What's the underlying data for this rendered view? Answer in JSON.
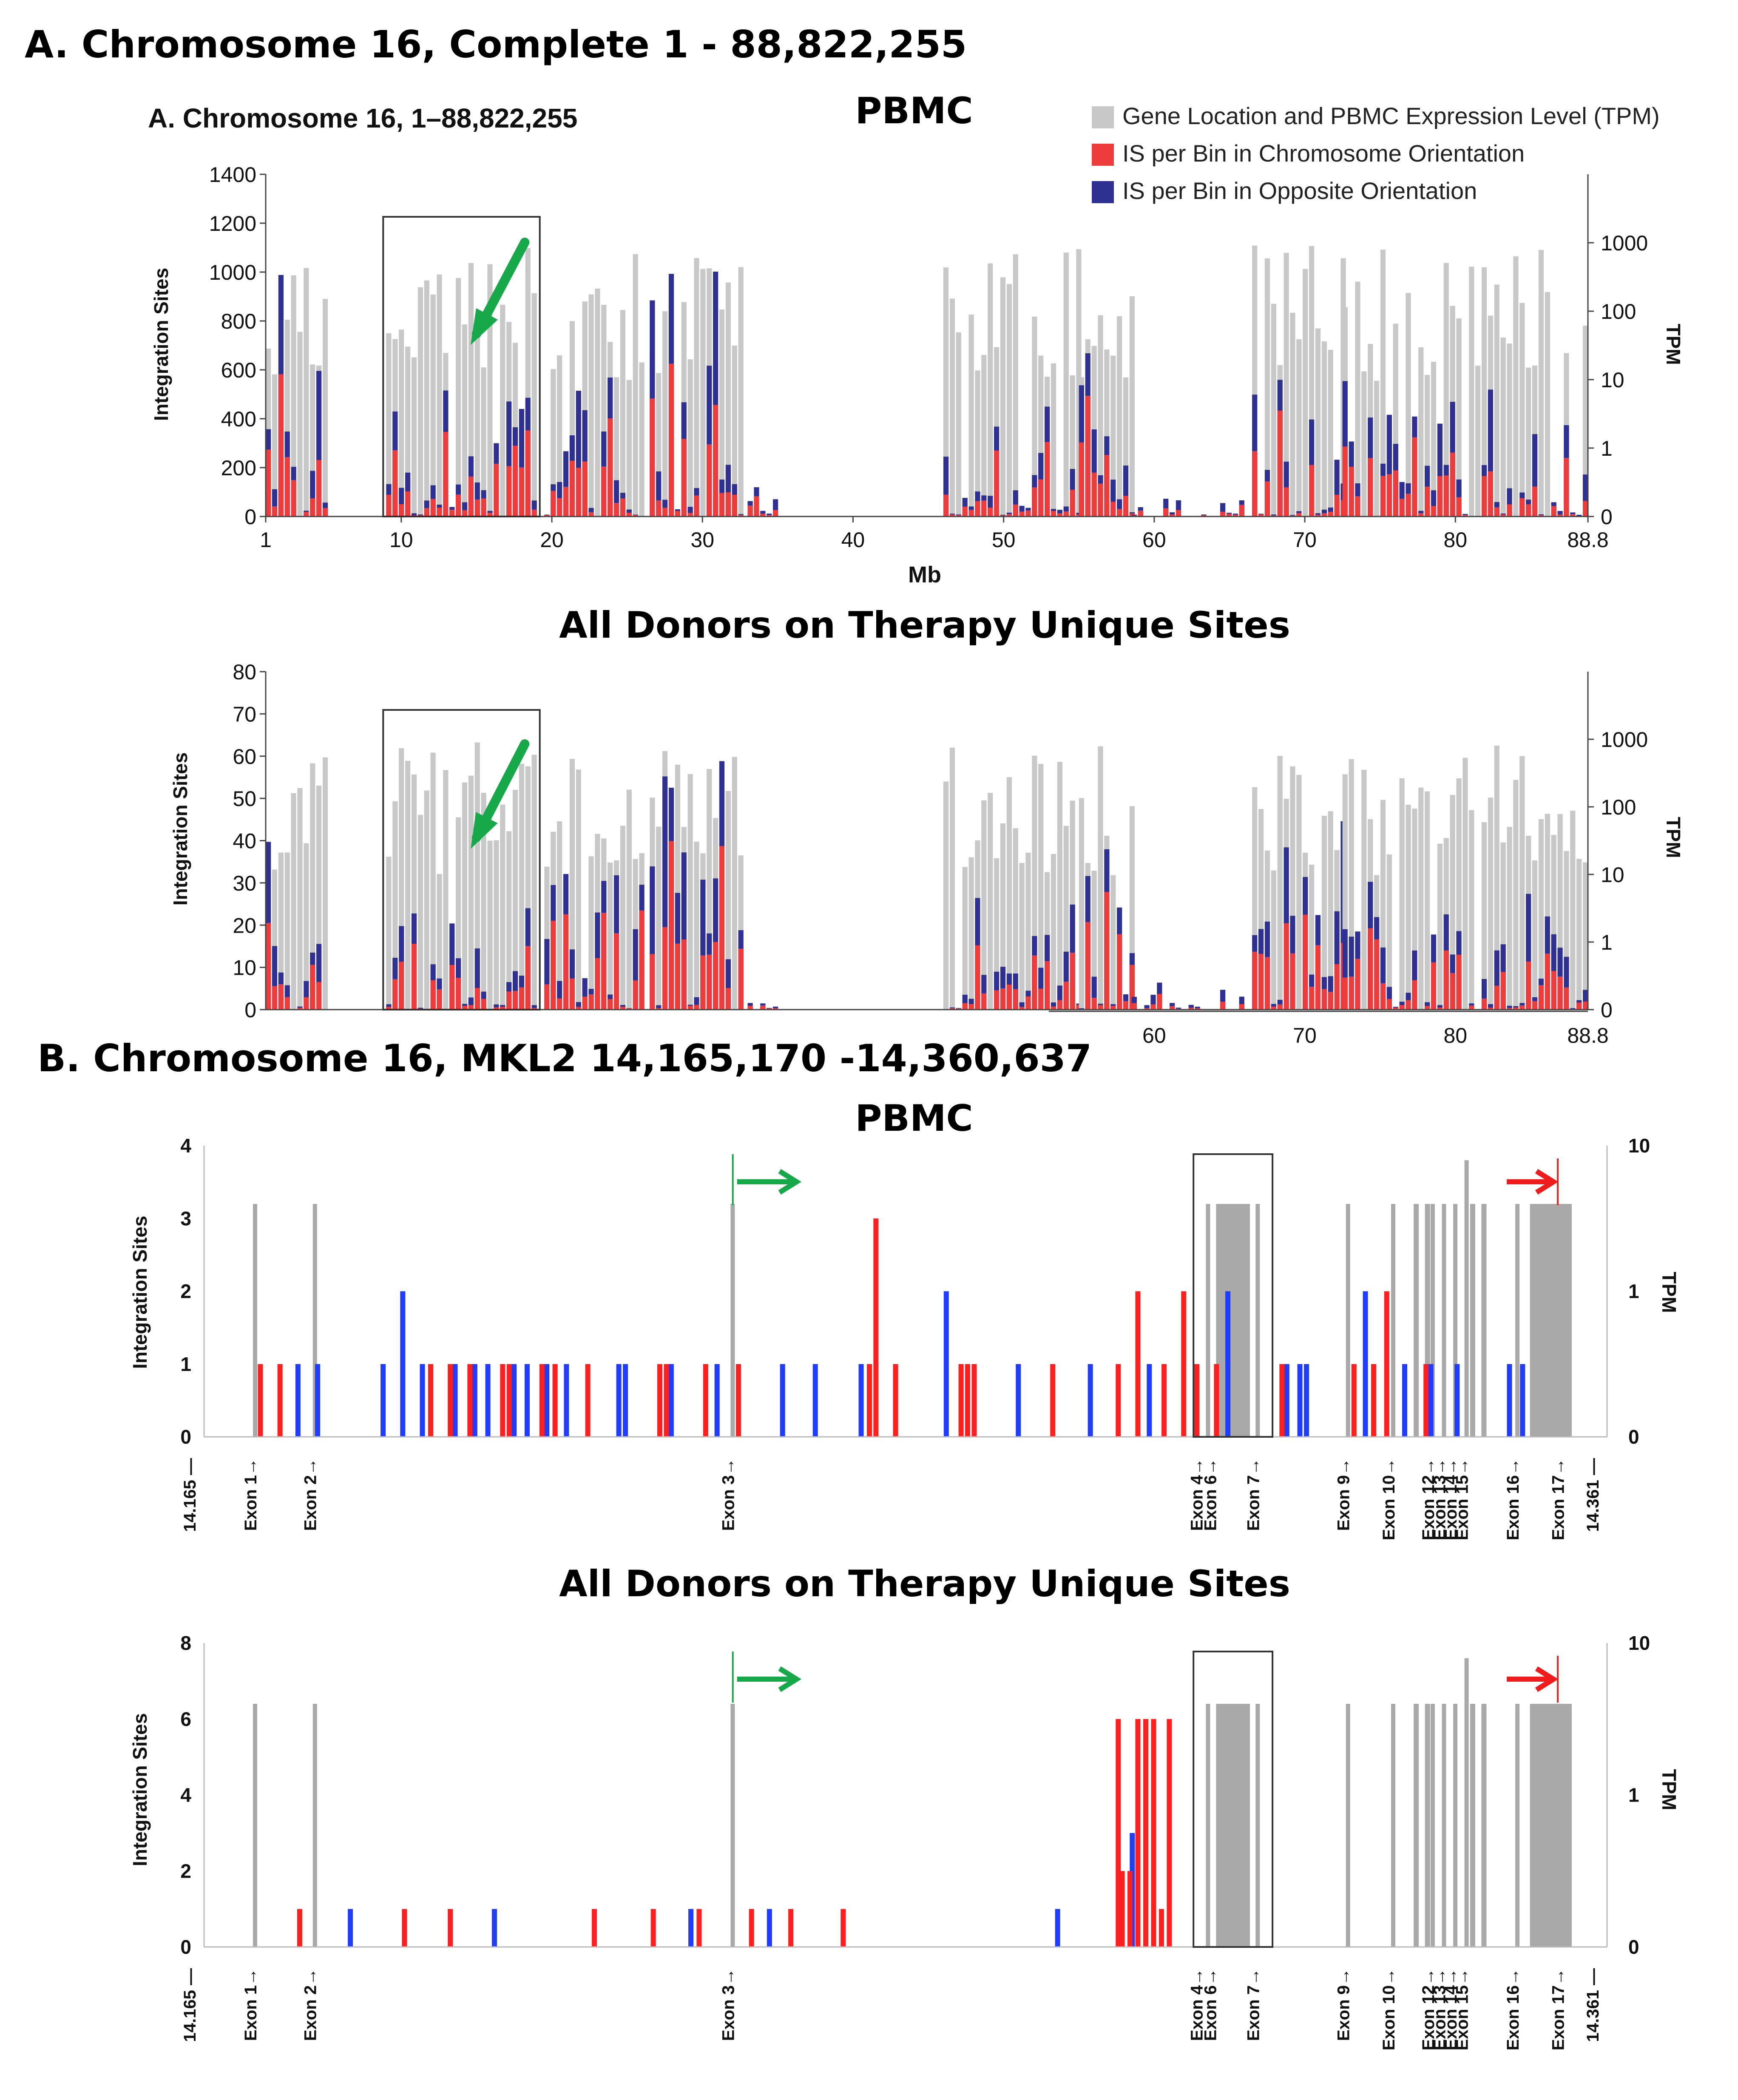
{
  "sections": {
    "a_title": "A. Chromosome 16, Complete 1 - 88,822,255",
    "b_title": "B. Chromosome 16, MKL2 14,165,170 -14,360,637"
  },
  "colors": {
    "gene": "#c8c8c8",
    "gene_dark": "#a9a9a9",
    "chrom": "#ee3b3b",
    "opp": "#2e3192",
    "blue": "#1f3cff",
    "red": "#ff1f1f",
    "arrow_green": "#17a84a",
    "arrow_red": "#ee1c1c"
  },
  "chart_data": [
    {
      "id": "A1",
      "type": "bar",
      "title": "PBMC",
      "inner_title": "A.  Chromosome 16, 1–88,822,255",
      "xlabel": "Mb",
      "ylabel": "Integration Sites",
      "y2label": "TPM",
      "ylim": [
        0,
        1400
      ],
      "yticks": [
        "0",
        "200",
        "400",
        "600",
        "800",
        "1000",
        "1200",
        "1400"
      ],
      "y2ticks": [
        "0",
        "1",
        "10",
        "100",
        "1000"
      ],
      "xrange": [
        1,
        88.8
      ],
      "xticks": [
        "1",
        "10",
        "20",
        "30",
        "40",
        "50",
        "60",
        "70",
        "80",
        "88.8"
      ],
      "legend": [
        "Gene Location and PBMC Expression Level (TPM)",
        "IS per Bin in Chromosome Orientation",
        "IS per Bin in Opposite Orientation"
      ],
      "arrow": "green"
    },
    {
      "id": "A2",
      "type": "bar",
      "title": "All Donors on Therapy Unique Sites",
      "ylabel": "Integration Sites",
      "y2label": "TPM",
      "ylim": [
        0,
        80
      ],
      "yticks": [
        "0",
        "10",
        "20",
        "30",
        "40",
        "50",
        "60",
        "70",
        "80"
      ],
      "y2ticks": [
        "0",
        "1",
        "10",
        "100",
        "1000"
      ],
      "xrange": [
        1,
        88.8
      ],
      "xticks": [
        "60",
        "70",
        "80",
        "88.8"
      ],
      "arrow": "green"
    },
    {
      "id": "B1",
      "type": "bar",
      "title": "PBMC",
      "ylabel": "Integration Sites",
      "y2label": "TPM",
      "ylim": [
        0,
        4
      ],
      "yticks": [
        "0",
        "1",
        "2",
        "3",
        "4"
      ],
      "y2ticks": [
        "0",
        "1",
        "10"
      ],
      "xrange": [
        14.165,
        14.361
      ],
      "xend_labels": [
        "14.165",
        "14.361"
      ],
      "exons": [
        "Exon 1",
        "Exon 2",
        "Exon 3",
        "Exon 4",
        "Exon 6",
        "Exon 7",
        "Exon 9",
        "Exon 10",
        "Exon 12",
        "Exon 13",
        "Exon 14",
        "Exon 15",
        "Exon 16",
        "Exon 17"
      ],
      "sites_red": [
        [
          0.03,
          1
        ],
        [
          0.045,
          1
        ],
        [
          0.16,
          1
        ],
        [
          0.175,
          1
        ],
        [
          0.19,
          1
        ],
        [
          0.215,
          1
        ],
        [
          0.22,
          1
        ],
        [
          0.245,
          1
        ],
        [
          0.255,
          1
        ],
        [
          0.28,
          1
        ],
        [
          0.335,
          1
        ],
        [
          0.34,
          1
        ],
        [
          0.37,
          1
        ],
        [
          0.395,
          1
        ],
        [
          0.495,
          1
        ],
        [
          0.5,
          3
        ],
        [
          0.515,
          1
        ],
        [
          0.565,
          1
        ],
        [
          0.57,
          1
        ],
        [
          0.575,
          1
        ],
        [
          0.635,
          1
        ],
        [
          0.685,
          1
        ],
        [
          0.7,
          2
        ],
        [
          0.72,
          1
        ],
        [
          0.735,
          2
        ],
        [
          0.745,
          1
        ],
        [
          0.76,
          1
        ],
        [
          0.81,
          1
        ],
        [
          0.865,
          1
        ],
        [
          0.88,
          1
        ],
        [
          0.89,
          2
        ],
        [
          0.92,
          1
        ]
      ],
      "sites_blue": [
        [
          0.06,
          1
        ],
        [
          0.075,
          1
        ],
        [
          0.125,
          1
        ],
        [
          0.14,
          2
        ],
        [
          0.155,
          1
        ],
        [
          0.18,
          1
        ],
        [
          0.195,
          1
        ],
        [
          0.205,
          1
        ],
        [
          0.225,
          1
        ],
        [
          0.235,
          1
        ],
        [
          0.25,
          1
        ],
        [
          0.265,
          1
        ],
        [
          0.305,
          1
        ],
        [
          0.31,
          1
        ],
        [
          0.345,
          1
        ],
        [
          0.38,
          1
        ],
        [
          0.43,
          1
        ],
        [
          0.455,
          1
        ],
        [
          0.49,
          1
        ],
        [
          0.555,
          2
        ],
        [
          0.61,
          1
        ],
        [
          0.665,
          1
        ],
        [
          0.71,
          1
        ],
        [
          0.77,
          2
        ],
        [
          0.815,
          1
        ],
        [
          0.825,
          1
        ],
        [
          0.83,
          1
        ],
        [
          0.875,
          2
        ],
        [
          0.905,
          1
        ],
        [
          0.925,
          1
        ],
        [
          0.945,
          1
        ],
        [
          0.985,
          1
        ],
        [
          0.995,
          1
        ]
      ]
    },
    {
      "id": "B2",
      "type": "bar",
      "title": "All Donors on Therapy Unique Sites",
      "ylabel": "Integration Sites",
      "y2label": "TPM",
      "ylim": [
        0,
        8
      ],
      "yticks": [
        "0",
        "2",
        "4",
        "6",
        "8"
      ],
      "y2ticks": [
        "0",
        "1",
        "10"
      ],
      "xrange": [
        14.165,
        14.361
      ],
      "xend_labels": [
        "14.165",
        "14.361"
      ],
      "exons": [
        "Exon 1",
        "Exon 2",
        "Exon 3",
        "Exon 4",
        "Exon 6",
        "Exon 7",
        "Exon 9",
        "Exon 10",
        "Exon 12",
        "Exon 13",
        "Exon 14",
        "Exon 15",
        "Exon 16",
        "Exon 17"
      ],
      "sites_red": [
        [
          0.06,
          1
        ],
        [
          0.14,
          1
        ],
        [
          0.175,
          1
        ],
        [
          0.285,
          1
        ],
        [
          0.33,
          1
        ],
        [
          0.365,
          1
        ],
        [
          0.405,
          1
        ],
        [
          0.435,
          1
        ],
        [
          0.475,
          1
        ],
        [
          0.685,
          6
        ],
        [
          0.688,
          2
        ],
        [
          0.694,
          2
        ],
        [
          0.7,
          6
        ],
        [
          0.706,
          6
        ],
        [
          0.712,
          6
        ],
        [
          0.718,
          1
        ],
        [
          0.724,
          6
        ]
      ],
      "sites_blue": [
        [
          0.1,
          1
        ],
        [
          0.21,
          1
        ],
        [
          0.36,
          1
        ],
        [
          0.42,
          1
        ],
        [
          0.64,
          1
        ],
        [
          0.697,
          3
        ]
      ]
    }
  ]
}
